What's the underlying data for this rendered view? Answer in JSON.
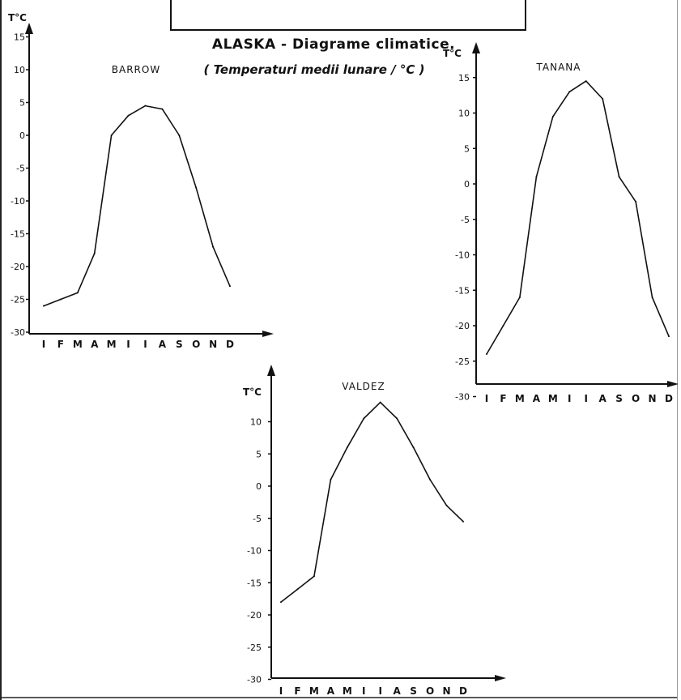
{
  "title": "ALASKA - Diagrame climatice.",
  "subtitle": "( Temperaturi medii lunare / °C )",
  "months": [
    "I",
    "F",
    "M",
    "A",
    "M",
    "I",
    "I",
    "A",
    "S",
    "O",
    "N",
    "D"
  ],
  "chart_data": [
    {
      "type": "line",
      "name": "BARROW",
      "unit_label": "T°C",
      "categories": [
        "I",
        "F",
        "M",
        "A",
        "M",
        "I",
        "I",
        "A",
        "S",
        "O",
        "N",
        "D"
      ],
      "values": [
        -26,
        -25,
        -24,
        -18,
        0,
        3,
        4.5,
        4,
        0,
        -8,
        -17,
        -23
      ],
      "yticks": [
        15,
        10,
        5,
        0,
        -5,
        -10,
        -15,
        -20,
        -25,
        -30
      ],
      "ylim": [
        -30,
        15
      ],
      "grid": false
    },
    {
      "type": "line",
      "name": "TANANA",
      "unit_label": "T°C",
      "categories": [
        "I",
        "F",
        "M",
        "A",
        "M",
        "I",
        "I",
        "A",
        "S",
        "O",
        "N",
        "D"
      ],
      "values": [
        -24,
        -20,
        -16,
        1,
        9.5,
        13,
        14.5,
        12,
        1,
        -2.5,
        -16,
        -21.5
      ],
      "yticks": [
        15,
        10,
        5,
        0,
        -5,
        -10,
        -15,
        -20,
        -25,
        -30
      ],
      "ylim": [
        -30,
        15
      ],
      "grid": false
    },
    {
      "type": "line",
      "name": "VALDEZ",
      "unit_label": "T°C",
      "categories": [
        "I",
        "F",
        "M",
        "A",
        "M",
        "I",
        "I",
        "A",
        "S",
        "O",
        "N",
        "D"
      ],
      "values": [
        -18,
        -16,
        -14,
        1,
        6,
        10.5,
        13,
        10.5,
        6,
        1,
        -3,
        -5.5
      ],
      "yticks": [
        10,
        5,
        0,
        -5,
        -10,
        -15,
        -20,
        -25,
        -30
      ],
      "ylim": [
        -30,
        15
      ],
      "grid": false
    }
  ]
}
